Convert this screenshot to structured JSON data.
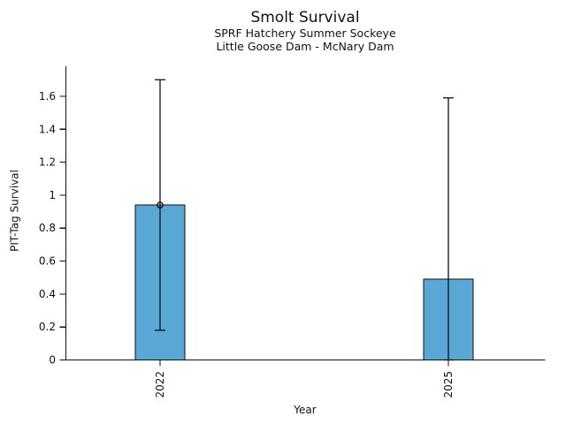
{
  "chart_data": {
    "type": "bar",
    "title": "Smolt Survival",
    "subtitle1": "SPRF Hatchery Summer Sockeye",
    "subtitle2": "Little Goose Dam - McNary Dam",
    "xlabel": "Year",
    "ylabel": "PIT-Tag Survival",
    "categories": [
      "2022",
      "2025"
    ],
    "values": [
      0.94,
      0.49
    ],
    "error_low": [
      0.18,
      0.0
    ],
    "error_high": [
      1.7,
      1.59
    ],
    "point_marker_on_bar_top": [
      true,
      false
    ],
    "bar_color": "#59a7d4",
    "bar_edge_color": "#111111",
    "error_bar_color": "#111111",
    "axis": {
      "ymin": 0,
      "ymax": 1.6,
      "ytick_step": 0.2,
      "ytick_labels": [
        "0",
        "0.2",
        "0.4",
        "0.6",
        "0.8",
        "1",
        "1.2",
        "1.4",
        "1.6"
      ]
    },
    "grid": false,
    "legend": "none"
  }
}
